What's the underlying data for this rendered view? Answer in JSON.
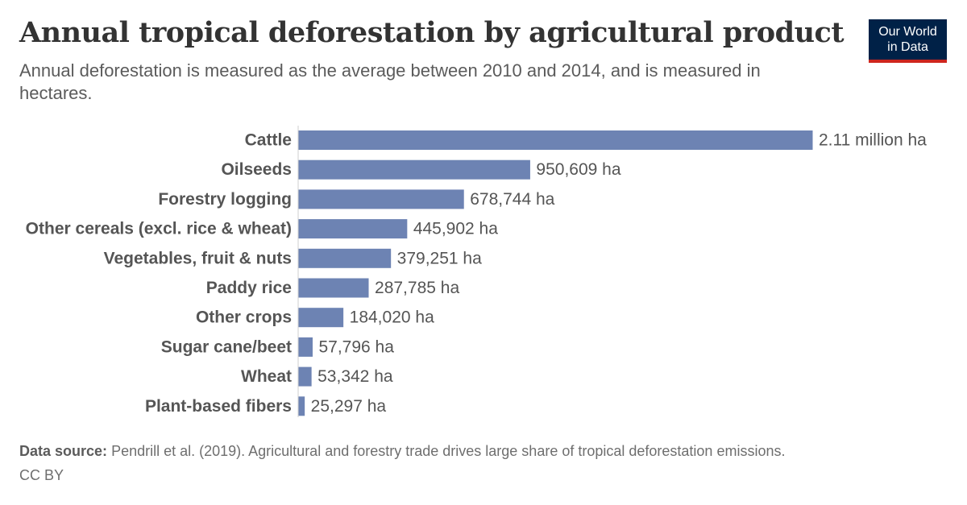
{
  "header": {
    "title": "Annual tropical deforestation by agricultural product",
    "subtitle": "Annual deforestation is measured as the average between 2010 and 2014, and is measured in hectares."
  },
  "logo": {
    "line1": "Our World",
    "line2": "in Data"
  },
  "chart_data": {
    "type": "bar",
    "orientation": "horizontal",
    "title": "Annual tropical deforestation by agricultural product",
    "subtitle": "Annual deforestation is measured as the average between 2010 and 2014, and is measured in hectares.",
    "categories": [
      "Cattle",
      "Oilseeds",
      "Forestry logging",
      "Other cereals (excl. rice & wheat)",
      "Vegetables, fruit & nuts",
      "Paddy rice",
      "Other crops",
      "Sugar cane/beet",
      "Wheat",
      "Plant-based fibers"
    ],
    "values": [
      2110000,
      950609,
      678744,
      445902,
      379251,
      287785,
      184020,
      57796,
      53342,
      25297
    ],
    "value_labels": [
      "2.11 million ha",
      "950,609 ha",
      "678,744 ha",
      "445,902 ha",
      "379,251 ha",
      "287,785 ha",
      "184,020 ha",
      "57,796 ha",
      "53,342 ha",
      "25,297 ha"
    ],
    "unit": "ha",
    "xlim": [
      0,
      2110000
    ],
    "grid": false,
    "legend": "none",
    "bar_color": "#6d83b3"
  },
  "footer": {
    "source_label": "Data source:",
    "source_text": "Pendrill et al. (2019). Agricultural and forestry trade drives large share of tropical deforestation emissions.",
    "license": "CC BY"
  },
  "colors": {
    "bar": "#6d83b3",
    "logo_bg": "#002147",
    "logo_accent": "#ce261e",
    "text": "#555555"
  }
}
